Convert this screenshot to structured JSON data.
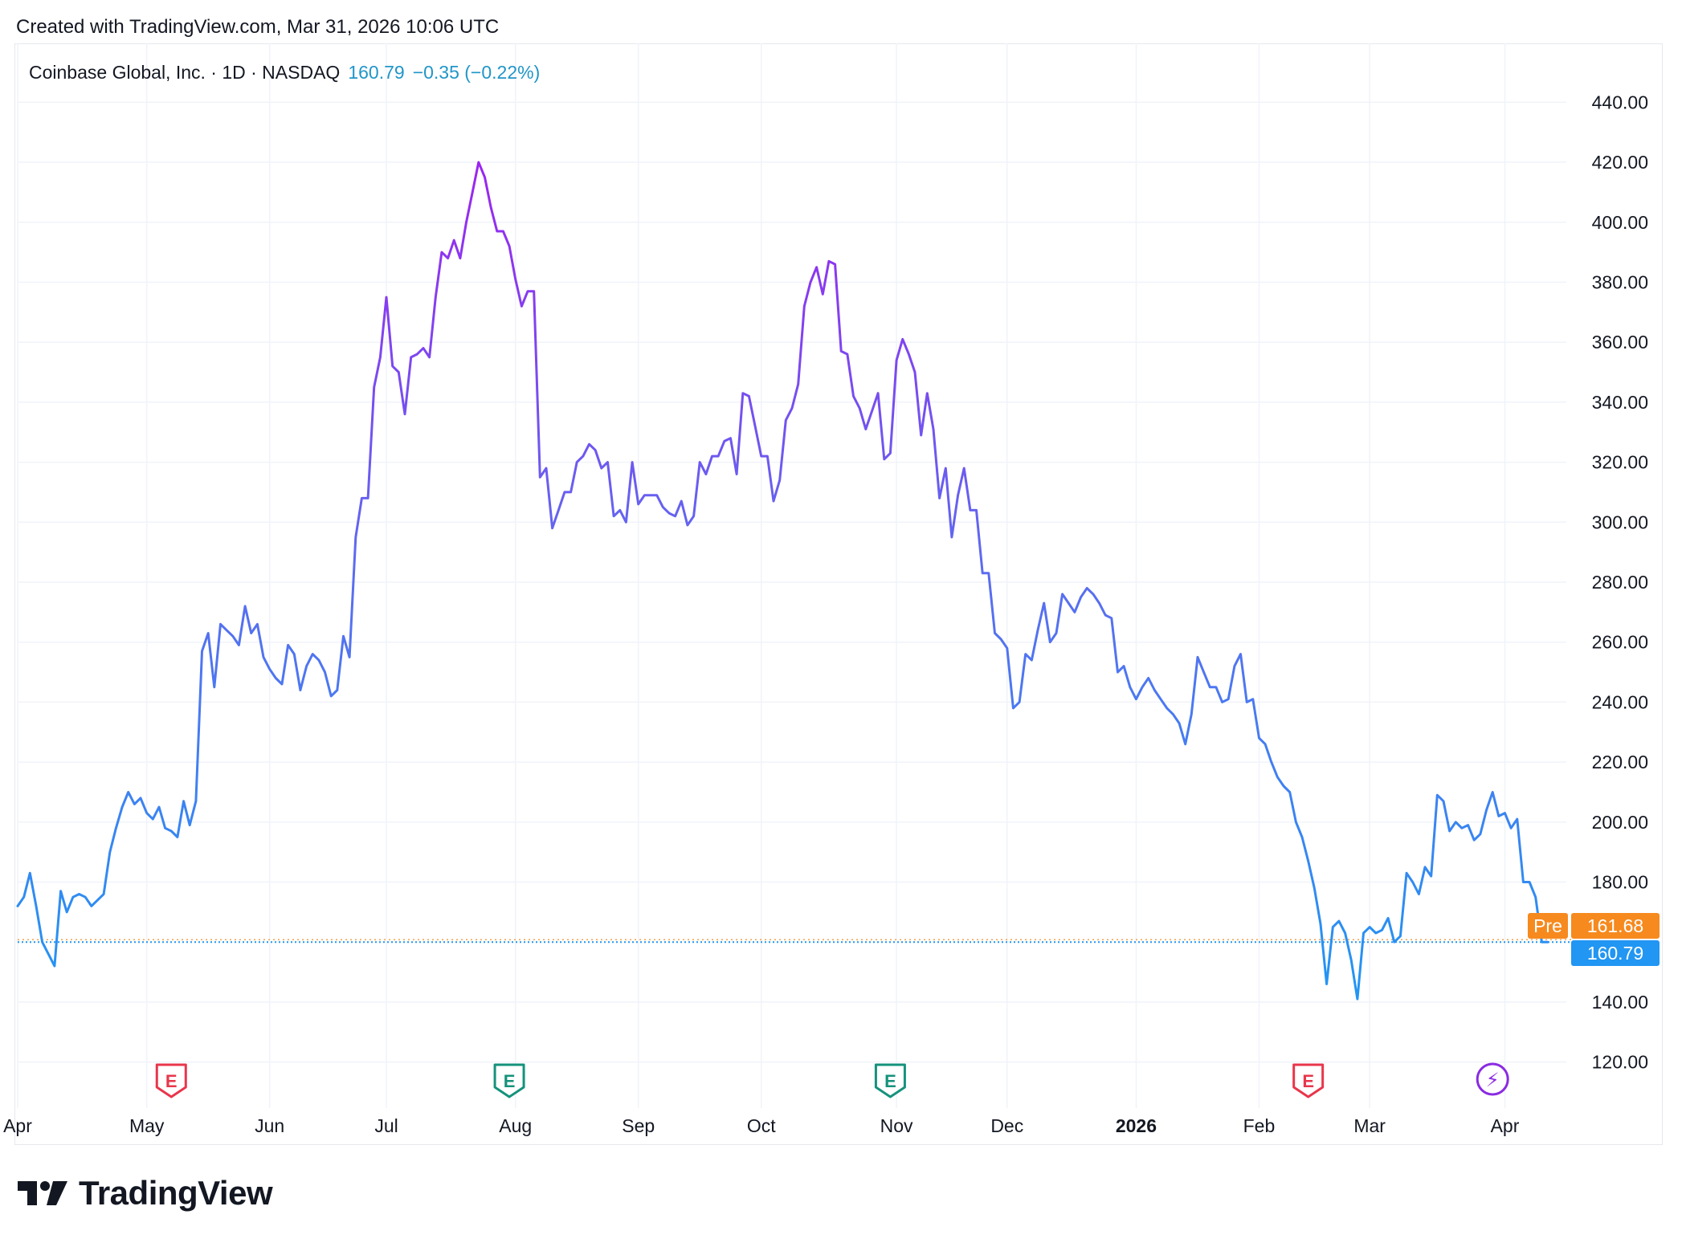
{
  "header": {
    "created_text": "Created with TradingView.com, Mar 31, 2026 10:06 UTC"
  },
  "legend": {
    "symbol": "Coinbase Global, Inc. · 1D · NASDAQ",
    "last": "160.79",
    "change": "−0.35 (−0.22%)"
  },
  "badges": {
    "pre_label": "Pre",
    "pre_value": "161.68",
    "last_value": "160.79"
  },
  "brand": {
    "name": "TradingView"
  },
  "colors": {
    "low": "#2196f3",
    "high": "#a020f0",
    "pre_badge": "#f68a1e",
    "last_badge": "#2196f3",
    "earnings_red": "#e8364b",
    "earnings_green": "#15927c",
    "grid": "#f0f3fa"
  },
  "chart_data": {
    "type": "line",
    "ylim": [
      110,
      450
    ],
    "y_ticks": [
      "440.00",
      "420.00",
      "400.00",
      "380.00",
      "360.00",
      "340.00",
      "320.00",
      "300.00",
      "280.00",
      "260.00",
      "240.00",
      "220.00",
      "200.00",
      "180.00",
      "140.00",
      "120.00"
    ],
    "x_ticks": [
      {
        "label": "Apr",
        "index": 0
      },
      {
        "label": "May",
        "index": 21
      },
      {
        "label": "Jun",
        "index": 41
      },
      {
        "label": "Jul",
        "index": 60
      },
      {
        "label": "Aug",
        "index": 81
      },
      {
        "label": "Sep",
        "index": 101
      },
      {
        "label": "Oct",
        "index": 121
      },
      {
        "label": "Nov",
        "index": 143
      },
      {
        "label": "Dec",
        "index": 161
      },
      {
        "label": "2026",
        "index": 182
      },
      {
        "label": "Feb",
        "index": 202
      },
      {
        "label": "Mar",
        "index": 220
      },
      {
        "label": "Apr",
        "index": 242
      }
    ],
    "x_range": [
      0,
      252
    ],
    "earnings": [
      {
        "label": "E",
        "index": 25,
        "kind": "red"
      },
      {
        "label": "E",
        "index": 80,
        "kind": "green"
      },
      {
        "label": "E",
        "index": 142,
        "kind": "green"
      },
      {
        "label": "E",
        "index": 210,
        "kind": "red"
      },
      {
        "label": "⚡",
        "index": 240,
        "kind": "purple"
      }
    ],
    "series": [
      {
        "values": [
          172,
          175,
          183,
          172,
          160,
          156,
          152,
          177,
          170,
          175,
          176,
          175,
          172,
          174,
          176,
          190,
          198,
          205,
          210,
          206,
          208,
          203,
          201,
          205,
          198,
          197,
          195,
          207,
          199,
          207,
          257,
          263,
          245,
          266,
          264,
          262,
          259,
          272,
          263,
          266,
          255,
          251,
          248,
          246,
          259,
          256,
          244,
          252,
          256,
          254,
          250,
          242,
          244,
          262,
          255,
          295,
          308,
          308,
          345,
          355,
          375,
          352,
          350,
          336,
          355,
          356,
          358,
          355,
          375,
          390,
          388,
          394,
          388,
          400,
          410,
          420,
          415,
          405,
          397,
          397,
          392,
          381,
          372,
          377,
          377,
          315,
          318,
          298,
          304,
          310,
          310,
          320,
          322,
          326,
          324,
          318,
          320,
          302,
          304,
          300,
          320,
          306,
          309,
          309,
          309,
          305,
          303,
          302,
          307,
          299,
          302,
          320,
          316,
          322,
          322,
          327,
          328,
          316,
          343,
          342,
          332,
          322,
          322,
          307,
          314,
          334,
          338,
          346,
          372,
          380,
          385,
          376,
          387,
          386,
          357,
          356,
          342,
          338,
          331,
          337,
          343,
          321,
          323,
          354,
          361,
          356,
          350,
          329,
          343,
          331,
          308,
          318,
          295,
          309,
          318,
          304,
          304,
          283,
          283,
          263,
          261,
          258,
          238,
          240,
          256,
          254,
          264,
          273,
          260,
          263,
          276,
          273,
          270,
          275,
          278,
          276,
          273,
          269,
          268,
          250,
          252,
          245,
          241,
          245,
          248,
          244,
          241,
          238,
          236,
          233,
          226,
          236,
          255,
          250,
          245,
          245,
          240,
          241,
          252,
          256,
          240,
          241,
          228,
          226,
          220,
          215,
          212,
          210,
          200,
          195,
          187,
          178,
          166,
          146,
          165,
          167,
          163,
          154,
          141,
          163,
          165,
          163,
          164,
          168,
          160,
          162,
          183,
          180,
          176,
          185,
          182,
          209,
          207,
          197,
          200,
          198,
          199,
          194,
          196,
          204,
          210,
          202,
          203,
          198,
          201,
          180,
          180,
          175,
          160,
          160
        ]
      }
    ]
  }
}
